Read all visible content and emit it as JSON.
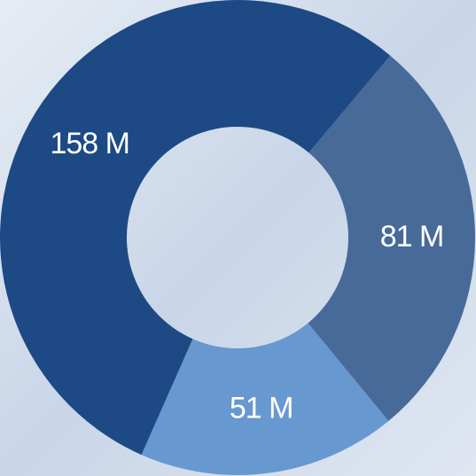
{
  "chart_data": {
    "type": "donut",
    "values": [
      81,
      51,
      158
    ],
    "value_labels": [
      "81 M",
      "51 M",
      "158 M"
    ],
    "colors": [
      "#476a99",
      "#6798d0",
      "#1d4a85"
    ]
  }
}
